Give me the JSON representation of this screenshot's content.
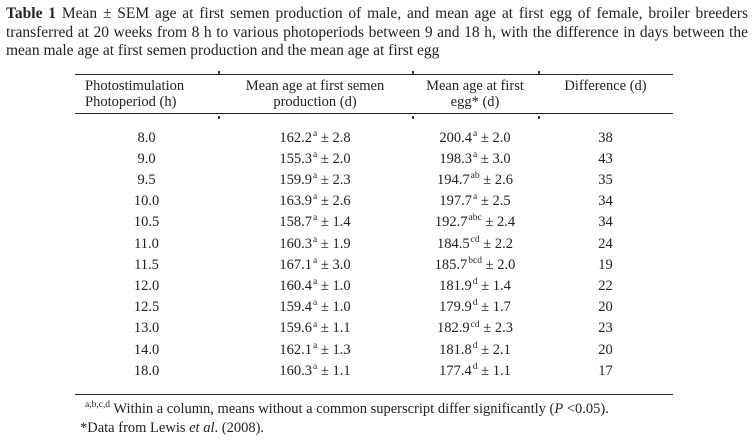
{
  "caption": {
    "label": "Table 1",
    "text": " Mean ± SEM age at first semen production of male, and mean age at first egg of female, broiler breeders transferred at 20 weeks from 8 h to various photoperiods between 9 and 18 h, with the difference in days between the mean male age at first semen production and the mean age at first egg"
  },
  "table": {
    "headers": [
      {
        "line1": "Photostimulation",
        "line2": "Photoperiod (h)"
      },
      {
        "line1": "Mean age at first semen",
        "line2": "production (d)"
      },
      {
        "line1": "Mean age at first",
        "line2": "egg* (d)"
      },
      {
        "line1": "Difference (d)",
        "line2": ""
      }
    ],
    "rows": [
      {
        "photoperiod": "8.0",
        "semen_mean": "162.2",
        "semen_sup": "a",
        "semen_sem": " ± 2.8",
        "egg_mean": "200.4",
        "egg_sup": "a",
        "egg_sem": " ± 2.0",
        "difference": "38"
      },
      {
        "photoperiod": "9.0",
        "semen_mean": "155.3",
        "semen_sup": "a",
        "semen_sem": " ± 2.0",
        "egg_mean": "198.3",
        "egg_sup": "a",
        "egg_sem": " ± 3.0",
        "difference": "43"
      },
      {
        "photoperiod": "9.5",
        "semen_mean": "159.9",
        "semen_sup": "a",
        "semen_sem": " ± 2.3",
        "egg_mean": "194.7",
        "egg_sup": "ab",
        "egg_sem": " ± 2.6",
        "difference": "35"
      },
      {
        "photoperiod": "10.0",
        "semen_mean": "163.9",
        "semen_sup": "a",
        "semen_sem": " ± 2.6",
        "egg_mean": "197.7",
        "egg_sup": "a",
        "egg_sem": " ± 2.5",
        "difference": "34"
      },
      {
        "photoperiod": "10.5",
        "semen_mean": "158.7",
        "semen_sup": "a",
        "semen_sem": " ± 1.4",
        "egg_mean": "192.7",
        "egg_sup": "abc",
        "egg_sem": " ± 2.4",
        "difference": "34"
      },
      {
        "photoperiod": "11.0",
        "semen_mean": "160.3",
        "semen_sup": "a",
        "semen_sem": " ± 1.9",
        "egg_mean": "184.5",
        "egg_sup": "cd",
        "egg_sem": " ± 2.2",
        "difference": "24"
      },
      {
        "photoperiod": "11.5",
        "semen_mean": "167.1",
        "semen_sup": "a",
        "semen_sem": " ± 3.0",
        "egg_mean": "185.7",
        "egg_sup": "bcd",
        "egg_sem": " ± 2.0",
        "difference": "19"
      },
      {
        "photoperiod": "12.0",
        "semen_mean": "160.4",
        "semen_sup": "a",
        "semen_sem": " ± 1.0",
        "egg_mean": "181.9",
        "egg_sup": "d",
        "egg_sem": " ± 1.4",
        "difference": "22"
      },
      {
        "photoperiod": "12.5",
        "semen_mean": "159.4",
        "semen_sup": "a",
        "semen_sem": " ± 1.0",
        "egg_mean": "179.9",
        "egg_sup": "d",
        "egg_sem": " ± 1.7",
        "difference": "20"
      },
      {
        "photoperiod": "13.0",
        "semen_mean": "159.6",
        "semen_sup": "a",
        "semen_sem": " ± 1.1",
        "egg_mean": "182.9",
        "egg_sup": "cd",
        "egg_sem": " ± 2.3",
        "difference": "23"
      },
      {
        "photoperiod": "14.0",
        "semen_mean": "162.1",
        "semen_sup": "a",
        "semen_sem": " ± 1.3",
        "egg_mean": "181.8",
        "egg_sup": "d",
        "egg_sem": " ± 2.1",
        "difference": "20"
      },
      {
        "photoperiod": "18.0",
        "semen_mean": "160.3",
        "semen_sup": "a",
        "semen_sem": " ± 1.1",
        "egg_mean": "177.4",
        "egg_sup": "d",
        "egg_sem": " ± 1.1",
        "difference": "17"
      }
    ]
  },
  "footnotes": {
    "significance_sup": "a,b,c,d",
    "significance_main": " Within a column, means without a common superscript differ significantly (",
    "significance_p": "P",
    "significance_end": " <0.05).",
    "source_start": "*Data from Lewis ",
    "source_italic": "et al",
    "source_end": ". (2008)."
  }
}
